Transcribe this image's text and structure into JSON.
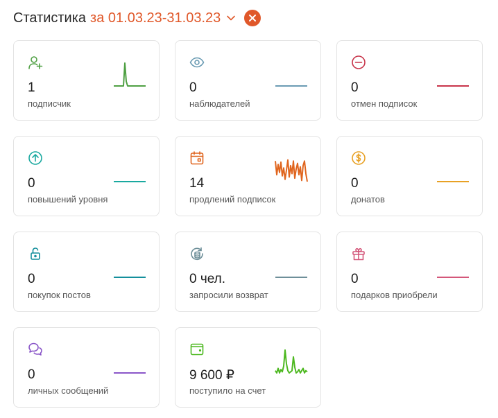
{
  "header": {
    "title": "Статистика",
    "period": "за 01.03.23-31.03.23"
  },
  "cards": [
    {
      "icon": "user-plus-icon",
      "value": "1",
      "label": "подписчик",
      "color": "#4fa043",
      "spark": [
        0,
        0,
        0,
        0,
        0,
        0,
        0,
        0,
        1,
        0.2,
        0,
        0,
        0,
        0,
        0,
        0,
        0,
        0,
        0,
        0,
        0,
        0,
        0,
        0
      ]
    },
    {
      "icon": "eye-icon",
      "value": "0",
      "label": "наблюдателей",
      "color": "#6a9bb3",
      "spark": [
        0,
        0,
        0,
        0,
        0,
        0,
        0,
        0,
        0,
        0,
        0,
        0,
        0,
        0,
        0,
        0,
        0,
        0,
        0,
        0,
        0,
        0,
        0,
        0
      ]
    },
    {
      "icon": "minus-circle-icon",
      "value": "0",
      "label": "отмен подписок",
      "color": "#c8344a",
      "spark": [
        0,
        0,
        0,
        0,
        0,
        0,
        0,
        0,
        0,
        0,
        0,
        0,
        0,
        0,
        0,
        0,
        0,
        0,
        0,
        0,
        0,
        0,
        0,
        0
      ]
    },
    {
      "icon": "arrow-up-circle-icon",
      "value": "0",
      "label": "повышений уровня",
      "color": "#1aa9a0",
      "spark": [
        0,
        0,
        0,
        0,
        0,
        0,
        0,
        0,
        0,
        0,
        0,
        0,
        0,
        0,
        0,
        0,
        0,
        0,
        0,
        0,
        0,
        0,
        0,
        0
      ]
    },
    {
      "icon": "calendar-icon",
      "value": "14",
      "label": "продлений подписок",
      "color": "#e0651e",
      "spark": [
        0.9,
        0.3,
        0.75,
        0.4,
        0.85,
        0.25,
        0.6,
        0.1,
        0.5,
        0.95,
        0.2,
        0.7,
        0.35,
        0.9,
        0.15,
        0.55,
        0.8,
        0.3,
        0.65,
        0.05,
        0.7,
        0.9,
        0.35,
        0.0
      ]
    },
    {
      "icon": "dollar-circle-icon",
      "value": "0",
      "label": "донатов",
      "color": "#e8a125",
      "spark": [
        0,
        0,
        0,
        0,
        0,
        0,
        0,
        0,
        0,
        0,
        0,
        0,
        0,
        0,
        0,
        0,
        0,
        0,
        0,
        0,
        0,
        0,
        0,
        0
      ]
    },
    {
      "icon": "lock-open-icon",
      "value": "0",
      "label": "покупок постов",
      "color": "#148f9c",
      "spark": [
        0,
        0,
        0,
        0,
        0,
        0,
        0,
        0,
        0,
        0,
        0,
        0,
        0,
        0,
        0,
        0,
        0,
        0,
        0,
        0,
        0,
        0,
        0,
        0
      ]
    },
    {
      "icon": "refund-coins-icon",
      "value": "0 чел.",
      "label": "запросили возврат",
      "color": "#6e8f99",
      "spark": [
        0,
        0,
        0,
        0,
        0,
        0,
        0,
        0,
        0,
        0,
        0,
        0,
        0,
        0,
        0,
        0,
        0,
        0,
        0,
        0,
        0,
        0,
        0,
        0
      ]
    },
    {
      "icon": "gift-icon",
      "value": "0",
      "label": "подарков приобрели",
      "color": "#d4577a",
      "spark": [
        0,
        0,
        0,
        0,
        0,
        0,
        0,
        0,
        0,
        0,
        0,
        0,
        0,
        0,
        0,
        0,
        0,
        0,
        0,
        0,
        0,
        0,
        0,
        0
      ]
    },
    {
      "icon": "chat-bubbles-icon",
      "value": "0",
      "label": "личных сообщений",
      "color": "#8a56c8",
      "spark": [
        0,
        0,
        0,
        0,
        0,
        0,
        0,
        0,
        0,
        0,
        0,
        0,
        0,
        0,
        0,
        0,
        0,
        0,
        0,
        0,
        0,
        0,
        0,
        0
      ]
    },
    {
      "icon": "wallet-icon",
      "value": "9 600 ₽",
      "label": "поступило на счет",
      "color": "#4cb81f",
      "spark": [
        0.1,
        0,
        0.2,
        0,
        0.15,
        0.05,
        0.3,
        1,
        0.4,
        0.1,
        0,
        0.05,
        0.1,
        0.7,
        0.25,
        0,
        0.05,
        0.15,
        0,
        0.1,
        0.2,
        0,
        0.1,
        0.05
      ]
    }
  ]
}
